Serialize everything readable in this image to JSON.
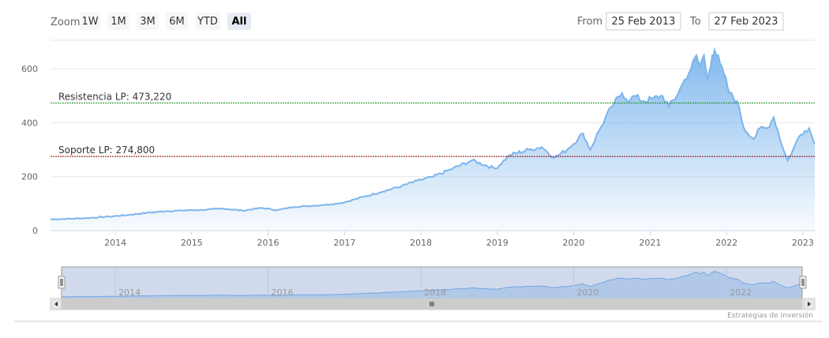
{
  "range_selector": {
    "zoom_label": "Zoom",
    "buttons": [
      "1W",
      "1M",
      "3M",
      "6M",
      "YTD",
      "All"
    ],
    "selected": "All",
    "from_label": "From",
    "from_value": "25 Feb 2013",
    "to_label": "To",
    "to_value": "27 Feb 2023"
  },
  "credits": "Estrategias de Inversión",
  "colors": {
    "series": "#7cb5ec",
    "resistance": "#1b8a1b",
    "support": "#8b0000",
    "navigator_mask": "rgba(102,133,194,0.3)"
  },
  "chart_data": {
    "type": "area",
    "x_axis": {
      "type": "datetime",
      "ticks": [
        "2014",
        "2015",
        "2016",
        "2017",
        "2018",
        "2019",
        "2020",
        "2021",
        "2022",
        "2023"
      ],
      "range": [
        "2013-02-25",
        "2023-02-27"
      ]
    },
    "y_axis": {
      "ticks": [
        0,
        200,
        400,
        600
      ],
      "range": [
        0,
        700
      ],
      "grid": true
    },
    "series": [
      {
        "type": "area",
        "x": [
          "2013-02-25",
          "2013-06-01",
          "2013-09-01",
          "2013-12-01",
          "2014-03-01",
          "2014-06-01",
          "2014-09-01",
          "2014-12-01",
          "2015-03-01",
          "2015-06-01",
          "2015-09-01",
          "2015-12-01",
          "2016-02-15",
          "2016-05-01",
          "2016-08-01",
          "2016-11-01",
          "2017-01-01",
          "2017-04-01",
          "2017-07-01",
          "2017-10-01",
          "2017-12-15",
          "2018-03-01",
          "2018-06-01",
          "2018-09-01",
          "2018-12-24",
          "2019-03-01",
          "2019-06-01",
          "2019-08-01",
          "2019-10-01",
          "2019-12-01",
          "2020-02-15",
          "2020-03-20",
          "2020-05-01",
          "2020-07-01",
          "2020-08-20",
          "2020-09-25",
          "2020-10-15",
          "2020-12-01",
          "2021-01-15",
          "2021-03-01",
          "2021-04-01",
          "2021-05-15",
          "2021-06-15",
          "2021-07-15",
          "2021-08-10",
          "2021-08-25",
          "2021-09-15",
          "2021-10-01",
          "2021-10-25",
          "2021-11-05",
          "2021-12-01",
          "2021-12-20",
          "2022-01-15",
          "2022-02-20",
          "2022-03-25",
          "2022-05-12",
          "2022-06-10",
          "2022-07-15",
          "2022-08-15",
          "2022-09-30",
          "2022-10-20",
          "2022-11-15",
          "2022-12-15",
          "2023-01-10",
          "2023-01-31",
          "2023-02-27"
        ],
        "y": [
          42,
          44,
          47,
          52,
          58,
          66,
          72,
          75,
          77,
          82,
          74,
          84,
          76,
          88,
          92,
          98,
          105,
          125,
          145,
          165,
          185,
          200,
          230,
          260,
          230,
          280,
          300,
          310,
          270,
          300,
          360,
          300,
          370,
          460,
          510,
          480,
          500,
          480,
          490,
          500,
          460,
          510,
          560,
          600,
          650,
          610,
          650,
          560,
          650,
          670,
          620,
          580,
          510,
          480,
          380,
          340,
          380,
          380,
          420,
          300,
          260,
          300,
          350,
          370,
          380,
          320
        ]
      }
    ],
    "plot_lines": [
      {
        "label": "Resistencia LP: 473,220",
        "value": 473.22
      },
      {
        "label": "Soporte LP: 274,800",
        "value": 274.8
      }
    ],
    "navigator": {
      "ticks": [
        "2014",
        "2016",
        "2018",
        "2020",
        "2022"
      ]
    }
  }
}
